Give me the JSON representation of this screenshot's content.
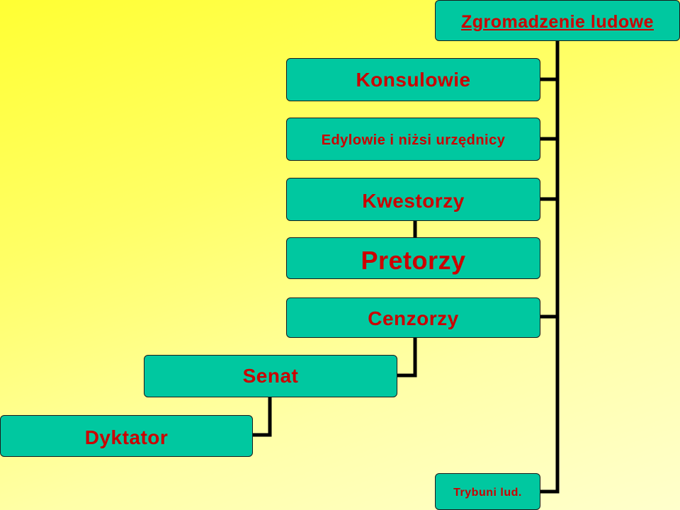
{
  "diagram": {
    "root": "Zgromadzenie ludowe",
    "nodes": [
      {
        "id": "konsulowie",
        "label": "Konsulowie"
      },
      {
        "id": "edylowie",
        "label": "Edylowie i niżsi urzędnicy"
      },
      {
        "id": "kwestorzy",
        "label": "Kwestorzy"
      },
      {
        "id": "pretorzy",
        "label": "Pretorzy"
      },
      {
        "id": "cenzorzy",
        "label": "Cenzorzy"
      },
      {
        "id": "senat",
        "label": "Senat"
      },
      {
        "id": "dyktator",
        "label": "Dyktator"
      },
      {
        "id": "trybuni",
        "label": "Trybuni lud."
      }
    ],
    "edges": [
      [
        "Zgromadzenie ludowe",
        "Konsulowie"
      ],
      [
        "Zgromadzenie ludowe",
        "Edylowie i niżsi urzędnicy"
      ],
      [
        "Zgromadzenie ludowe",
        "Kwestorzy"
      ],
      [
        "Zgromadzenie ludowe",
        "Cenzorzy"
      ],
      [
        "Zgromadzenie ludowe",
        "Trybuni lud."
      ],
      [
        "Kwestorzy",
        "Pretorzy"
      ],
      [
        "Cenzorzy",
        "Senat"
      ],
      [
        "Senat",
        "Dyktator"
      ]
    ]
  },
  "colors": {
    "box_fill": "#00c8a0",
    "label_text": "#cc0000",
    "connector": "#000000",
    "background_top": "#ffff33",
    "background_bottom": "#ffffcc"
  }
}
